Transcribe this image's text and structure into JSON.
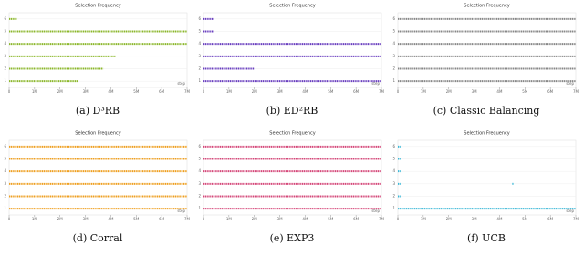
{
  "chart_data": [
    {
      "type": "strip",
      "title": "Selection Frequency",
      "caption": "(a) D³RB",
      "xlabel": "step",
      "color": "#8cb82b",
      "xlim": [
        0,
        7
      ],
      "xticks": [
        {
          "value": 0,
          "label": "0"
        },
        {
          "value": 1,
          "label": "1M"
        },
        {
          "value": 2,
          "label": "2M"
        },
        {
          "value": 3,
          "label": "3M"
        },
        {
          "value": 4,
          "label": "4M"
        },
        {
          "value": 5,
          "label": "5M"
        },
        {
          "value": 6,
          "label": "6M"
        },
        {
          "value": 7,
          "label": "7M"
        }
      ],
      "ylim": [
        0.5,
        6.5
      ],
      "yticks": [
        1,
        2,
        3,
        4,
        5,
        6
      ],
      "series": [
        {
          "y": 1,
          "intervals": [
            [
              0,
              2.7
            ]
          ]
        },
        {
          "y": 2,
          "intervals": [
            [
              0,
              3.7
            ]
          ]
        },
        {
          "y": 3,
          "intervals": [
            [
              0,
              4.2
            ]
          ]
        },
        {
          "y": 4,
          "intervals": [
            [
              0,
              7
            ]
          ]
        },
        {
          "y": 5,
          "intervals": [
            [
              0,
              7
            ]
          ]
        },
        {
          "y": 6,
          "intervals": [
            [
              0,
              0.3
            ]
          ]
        }
      ]
    },
    {
      "type": "strip",
      "title": "Selection Frequency",
      "caption": "(b) ED²RB",
      "xlabel": "step",
      "color": "#6a3fc0",
      "xlim": [
        0,
        7
      ],
      "xticks": [
        {
          "value": 0,
          "label": "0"
        },
        {
          "value": 1,
          "label": "1M"
        },
        {
          "value": 2,
          "label": "2M"
        },
        {
          "value": 3,
          "label": "3M"
        },
        {
          "value": 4,
          "label": "4M"
        },
        {
          "value": 5,
          "label": "5M"
        },
        {
          "value": 6,
          "label": "6M"
        },
        {
          "value": 7,
          "label": "7M"
        }
      ],
      "ylim": [
        0.5,
        6.5
      ],
      "yticks": [
        1,
        2,
        3,
        4,
        5,
        6
      ],
      "series": [
        {
          "y": 1,
          "intervals": [
            [
              0,
              7
            ]
          ]
        },
        {
          "y": 2,
          "intervals": [
            [
              0,
              2
            ]
          ]
        },
        {
          "y": 3,
          "intervals": [
            [
              0,
              7
            ]
          ]
        },
        {
          "y": 4,
          "intervals": [
            [
              0,
              7
            ]
          ]
        },
        {
          "y": 5,
          "intervals": [
            [
              0,
              0.4
            ]
          ]
        },
        {
          "y": 6,
          "intervals": [
            [
              0,
              0.4
            ]
          ]
        }
      ]
    },
    {
      "type": "strip",
      "title": "Selection Frequency",
      "caption": "(c) Classic Balancing",
      "xlabel": "step",
      "color": "#888888",
      "xlim": [
        0,
        7
      ],
      "xticks": [
        {
          "value": 0,
          "label": "0"
        },
        {
          "value": 1,
          "label": "1M"
        },
        {
          "value": 2,
          "label": "2M"
        },
        {
          "value": 3,
          "label": "3M"
        },
        {
          "value": 4,
          "label": "4M"
        },
        {
          "value": 5,
          "label": "5M"
        },
        {
          "value": 6,
          "label": "6M"
        },
        {
          "value": 7,
          "label": "7M"
        }
      ],
      "ylim": [
        0.5,
        6.5
      ],
      "yticks": [
        1,
        2,
        3,
        4,
        5,
        6
      ],
      "series": [
        {
          "y": 1,
          "intervals": [
            [
              0,
              7
            ]
          ]
        },
        {
          "y": 2,
          "intervals": [
            [
              0,
              7
            ]
          ]
        },
        {
          "y": 3,
          "intervals": [
            [
              0,
              7
            ]
          ]
        },
        {
          "y": 4,
          "intervals": [
            [
              0,
              7
            ]
          ]
        },
        {
          "y": 5,
          "intervals": [
            [
              0,
              7
            ]
          ]
        },
        {
          "y": 6,
          "intervals": [
            [
              0,
              7
            ]
          ]
        }
      ]
    },
    {
      "type": "strip",
      "title": "Selection Frequency",
      "caption": "(d) Corral",
      "xlabel": "step",
      "color": "#f0a020",
      "xlim": [
        0,
        7
      ],
      "xticks": [
        {
          "value": 0,
          "label": "0"
        },
        {
          "value": 1,
          "label": "1M"
        },
        {
          "value": 2,
          "label": "2M"
        },
        {
          "value": 3,
          "label": "3M"
        },
        {
          "value": 4,
          "label": "4M"
        },
        {
          "value": 5,
          "label": "5M"
        },
        {
          "value": 6,
          "label": "6M"
        },
        {
          "value": 7,
          "label": "7M"
        }
      ],
      "ylim": [
        0.5,
        6.5
      ],
      "yticks": [
        1,
        2,
        3,
        4,
        5,
        6
      ],
      "series": [
        {
          "y": 1,
          "intervals": [
            [
              0,
              7
            ]
          ]
        },
        {
          "y": 2,
          "intervals": [
            [
              0,
              7
            ]
          ]
        },
        {
          "y": 3,
          "intervals": [
            [
              0,
              7
            ]
          ]
        },
        {
          "y": 4,
          "intervals": [
            [
              0,
              7
            ]
          ]
        },
        {
          "y": 5,
          "intervals": [
            [
              0,
              7
            ]
          ]
        },
        {
          "y": 6,
          "intervals": [
            [
              0,
              7
            ]
          ]
        }
      ]
    },
    {
      "type": "strip",
      "title": "Selection Frequency",
      "caption": "(e) EXP3",
      "xlabel": "step",
      "color": "#d6487a",
      "xlim": [
        0,
        7
      ],
      "xticks": [
        {
          "value": 0,
          "label": "0"
        },
        {
          "value": 1,
          "label": "1M"
        },
        {
          "value": 2,
          "label": "2M"
        },
        {
          "value": 3,
          "label": "3M"
        },
        {
          "value": 4,
          "label": "4M"
        },
        {
          "value": 5,
          "label": "5M"
        },
        {
          "value": 6,
          "label": "6M"
        },
        {
          "value": 7,
          "label": "7M"
        }
      ],
      "ylim": [
        0.5,
        6.5
      ],
      "yticks": [
        1,
        2,
        3,
        4,
        5,
        6
      ],
      "series": [
        {
          "y": 1,
          "intervals": [
            [
              0,
              7
            ]
          ]
        },
        {
          "y": 2,
          "intervals": [
            [
              0,
              7
            ]
          ]
        },
        {
          "y": 3,
          "intervals": [
            [
              0,
              7
            ]
          ]
        },
        {
          "y": 4,
          "intervals": [
            [
              0,
              7
            ]
          ]
        },
        {
          "y": 5,
          "intervals": [
            [
              0,
              7
            ]
          ]
        },
        {
          "y": 6,
          "intervals": [
            [
              0,
              7
            ]
          ]
        }
      ]
    },
    {
      "type": "strip",
      "title": "Selection Frequency",
      "caption": "(f) UCB",
      "xlabel": "step",
      "color": "#3ab8d8",
      "xlim": [
        0,
        7
      ],
      "xticks": [
        {
          "value": 0,
          "label": "0"
        },
        {
          "value": 1,
          "label": "1M"
        },
        {
          "value": 2,
          "label": "2M"
        },
        {
          "value": 3,
          "label": "3M"
        },
        {
          "value": 4,
          "label": "4M"
        },
        {
          "value": 5,
          "label": "5M"
        },
        {
          "value": 6,
          "label": "6M"
        },
        {
          "value": 7,
          "label": "7M"
        }
      ],
      "ylim": [
        0.5,
        6.5
      ],
      "yticks": [
        1,
        2,
        3,
        4,
        5,
        6
      ],
      "series": [
        {
          "y": 1,
          "intervals": [
            [
              0,
              7
            ]
          ]
        },
        {
          "y": 2,
          "intervals": [
            [
              0,
              0.1
            ]
          ]
        },
        {
          "y": 3,
          "intervals": [
            [
              0,
              0.1
            ],
            [
              4.5,
              4.55
            ]
          ]
        },
        {
          "y": 4,
          "intervals": [
            [
              0,
              0.1
            ]
          ]
        },
        {
          "y": 5,
          "intervals": [
            [
              0,
              0.1
            ]
          ]
        },
        {
          "y": 6,
          "intervals": [
            [
              0,
              0.1
            ]
          ]
        }
      ]
    }
  ]
}
